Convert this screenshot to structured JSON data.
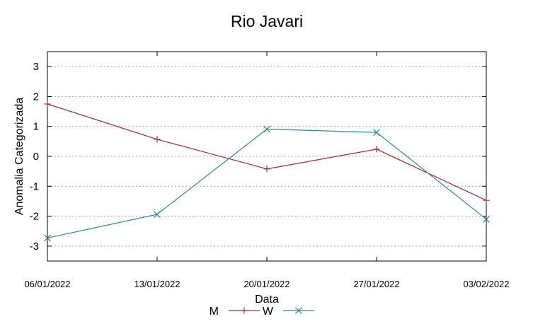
{
  "chart_data": {
    "type": "line",
    "title": "Rio Javari",
    "xlabel": "Data",
    "ylabel": "Anomalia Categorizada",
    "categories": [
      "06/01/2022",
      "13/01/2022",
      "20/01/2022",
      "27/01/2022",
      "03/02/2022"
    ],
    "yticks": [
      "-3",
      "-2",
      "-1",
      "0",
      "1",
      "2",
      "3"
    ],
    "ylim": [
      -3.5,
      3.5
    ],
    "grid": true,
    "legend_position": "bottom-center",
    "series": [
      {
        "name": "M",
        "marker": "+",
        "color": "#a52a2a",
        "values": [
          1.75,
          0.57,
          -0.42,
          0.24,
          -1.47
        ]
      },
      {
        "name": "W",
        "marker": "x",
        "color": "#2a8a8a",
        "values": [
          -2.73,
          -1.94,
          0.91,
          0.8,
          -2.1
        ]
      }
    ]
  }
}
